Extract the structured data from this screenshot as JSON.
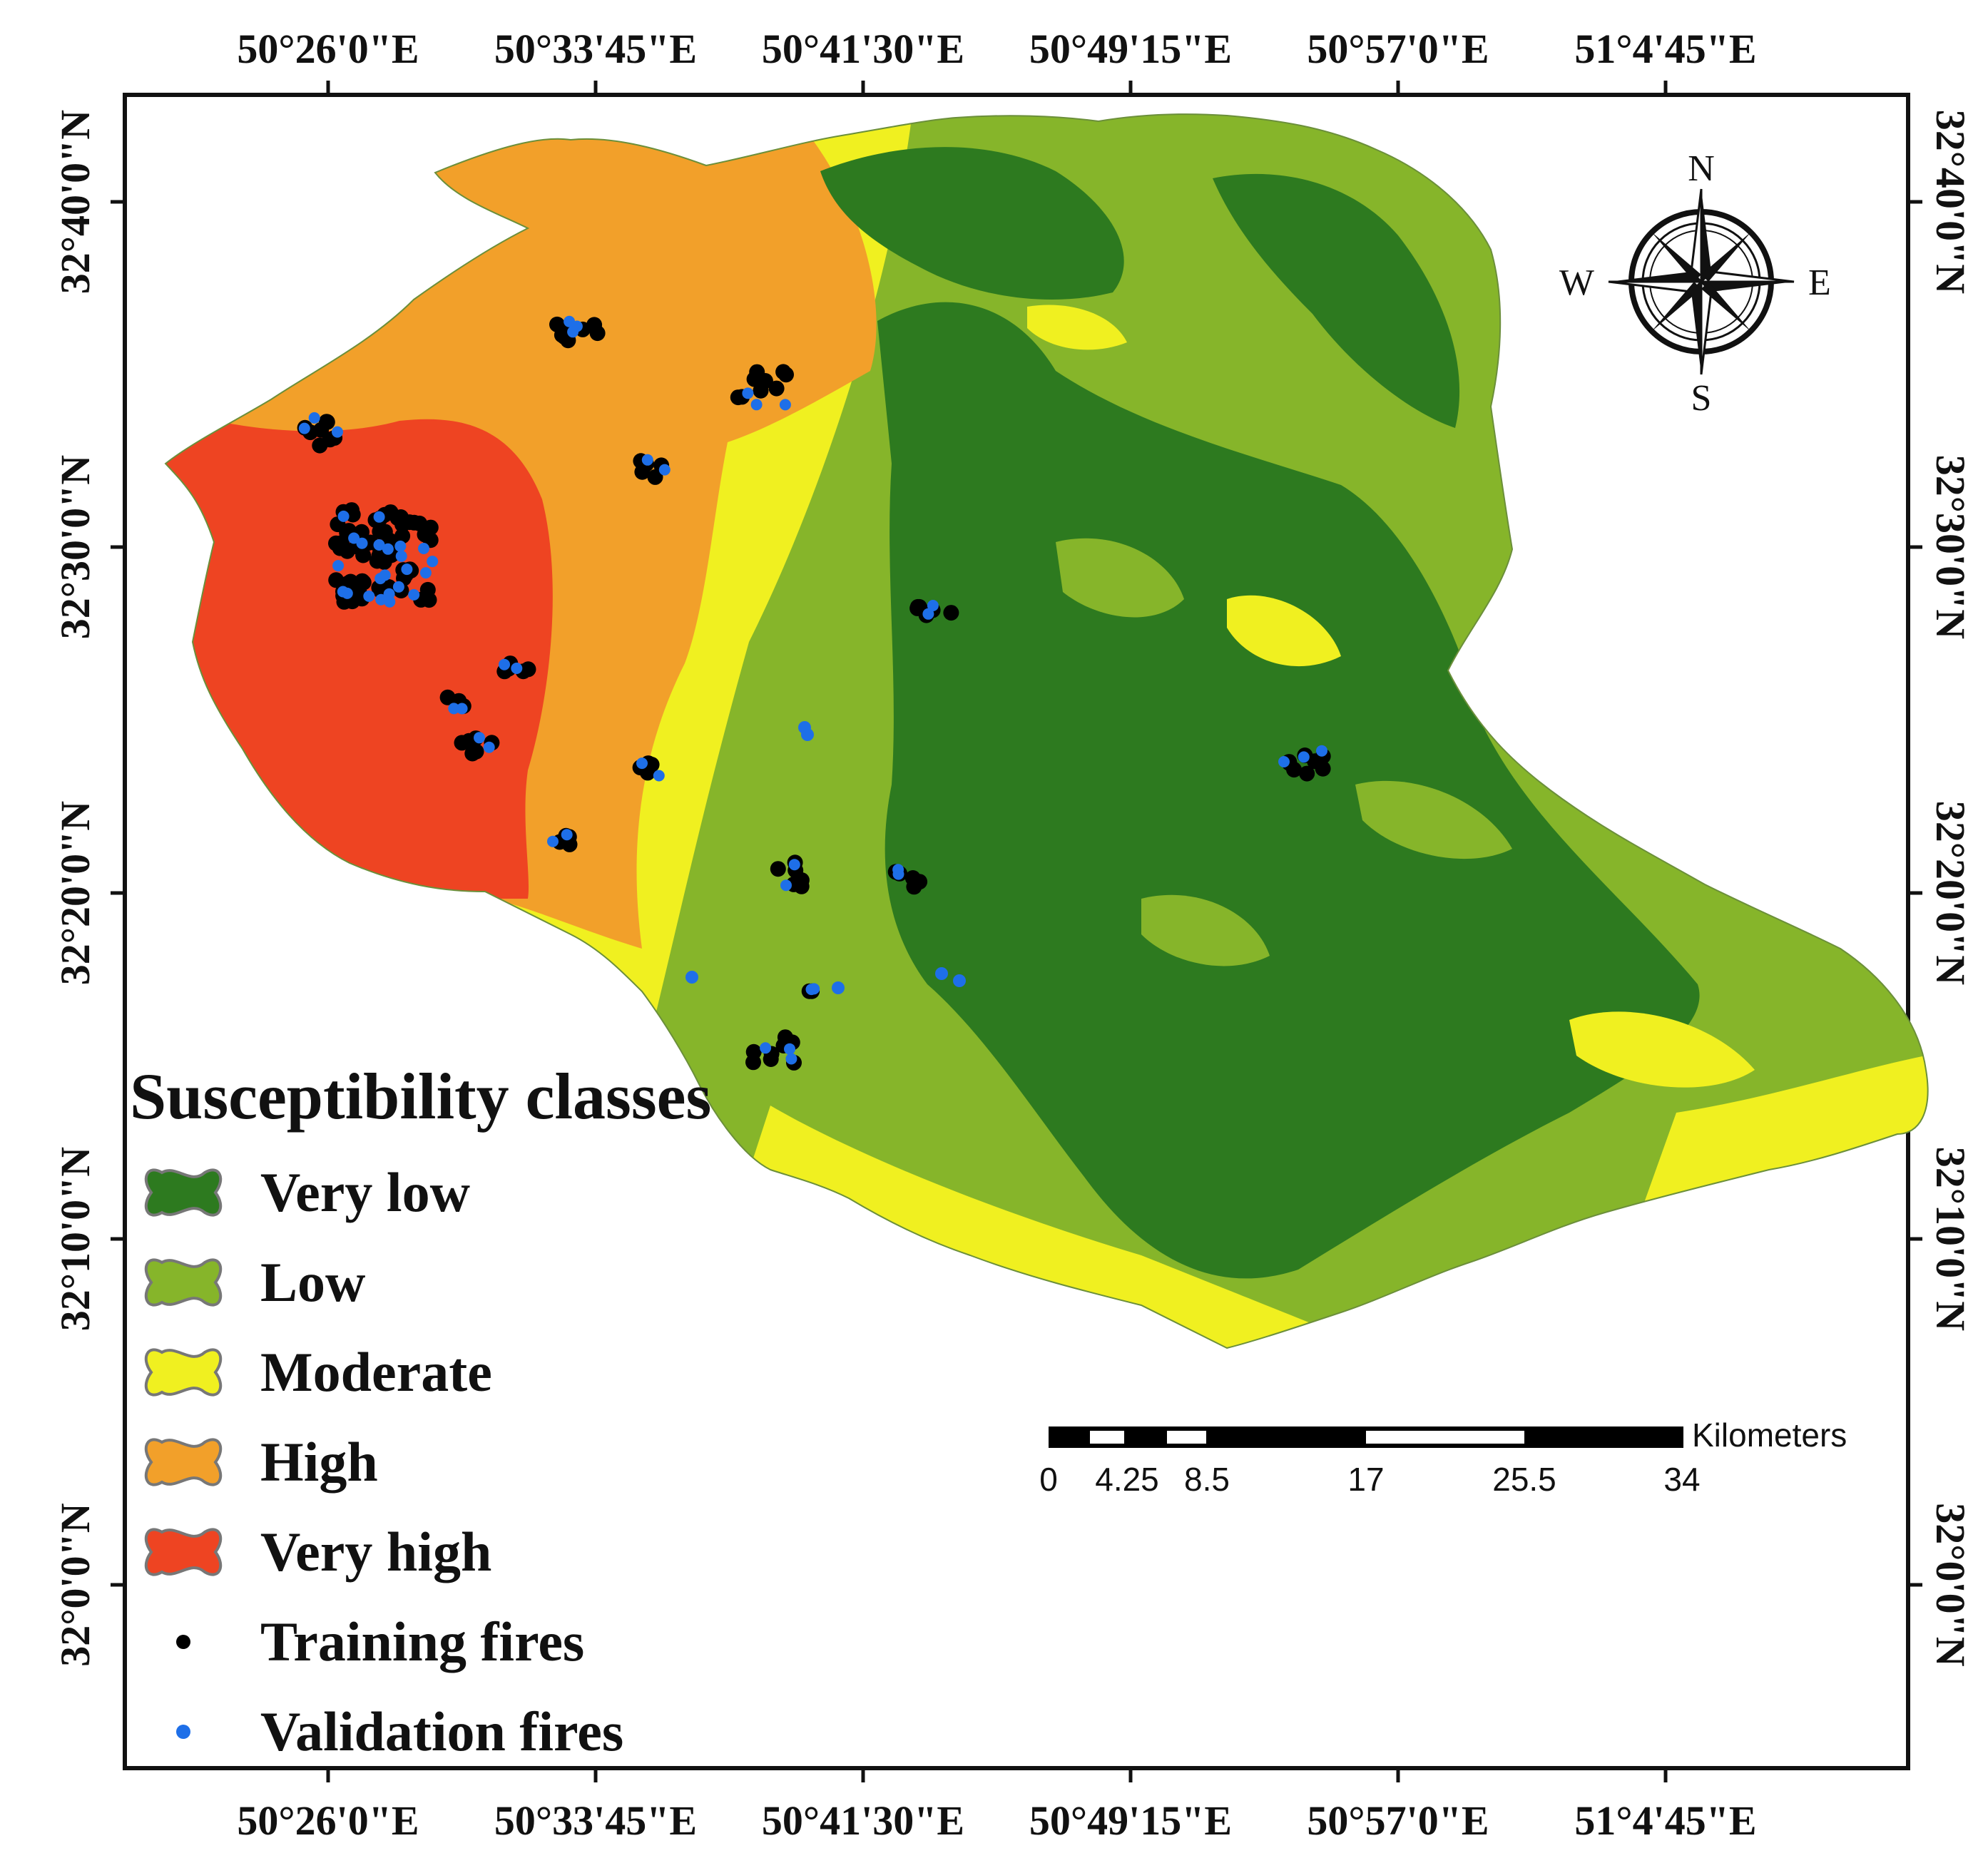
{
  "axes": {
    "top_labels": [
      "50°26'0\"E",
      "50°33'45\"E",
      "50°41'30\"E",
      "50°49'15\"E",
      "50°57'0\"E",
      "51°4'45\"E"
    ],
    "bottom_labels": [
      "50°26'0\"E",
      "50°33'45\"E",
      "50°41'30\"E",
      "50°49'15\"E",
      "50°57'0\"E",
      "51°4'45\"E"
    ],
    "left_labels": [
      "32°40'0\"N",
      "32°30'0\"N",
      "32°20'0\"N",
      "32°10'0\"N",
      "32°0'0\"N"
    ],
    "right_labels": [
      "32°40'0\"N",
      "32°30'0\"N",
      "32°20'0\"N",
      "32°10'0\"N",
      "32°0'0\"N"
    ]
  },
  "legend": {
    "title": "Susceptibility classes",
    "classes": [
      {
        "label": "Very low",
        "color": "#2d7a1f",
        "icon": "blob-swatch"
      },
      {
        "label": "Low",
        "color": "#86b52a",
        "icon": "blob-swatch"
      },
      {
        "label": "Moderate",
        "color": "#f0f020",
        "icon": "blob-swatch"
      },
      {
        "label": "High",
        "color": "#f2a02a",
        "icon": "blob-swatch"
      },
      {
        "label": "Very high",
        "color": "#ee4422",
        "icon": "blob-swatch"
      }
    ],
    "points": [
      {
        "label": "Training fires",
        "color": "#000000",
        "icon": "dot"
      },
      {
        "label": "Validation fires",
        "color": "#1e6fe8",
        "icon": "dot"
      }
    ]
  },
  "scale_bar": {
    "unit": "Kilometers",
    "ticks": [
      "0",
      "4.25",
      "8.5",
      "17",
      "25.5",
      "34"
    ]
  },
  "north_arrow": {
    "icon": "compass-rose-icon",
    "n": "N",
    "s": "S",
    "e": "E",
    "w": "W"
  }
}
